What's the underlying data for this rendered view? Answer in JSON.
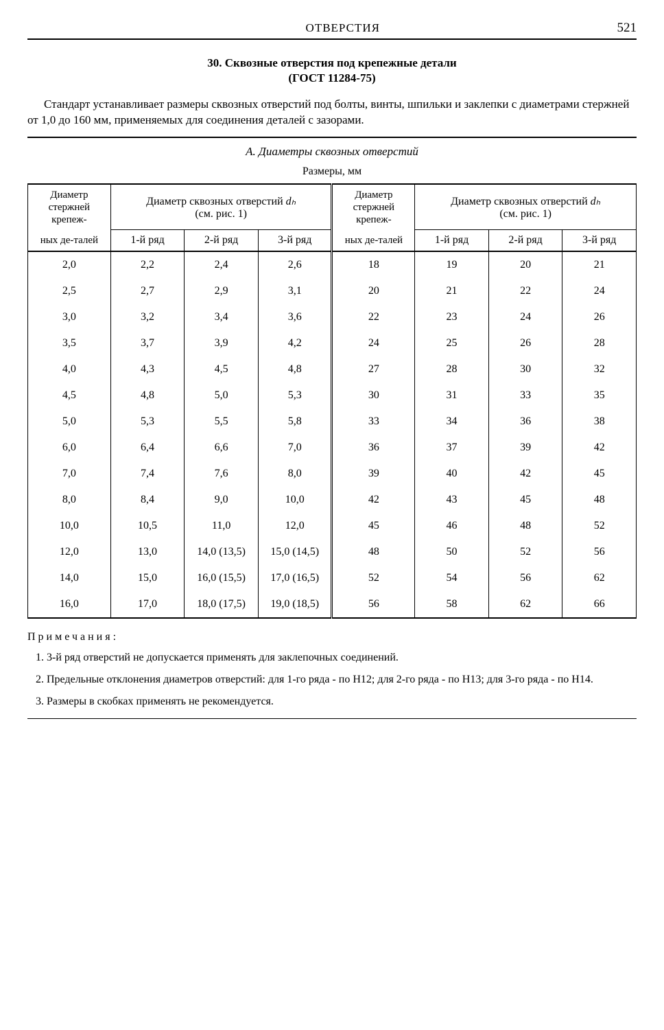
{
  "header": {
    "title": "ОТВЕРСТИЯ",
    "page": "521"
  },
  "section": {
    "number_title": "30. Сквозные отверстия под крепежные детали",
    "gost": "(ГОСТ 11284-75)",
    "intro": "Стандарт устанавливает размеры сквозных отверстий под болты, винты, шпильки и заклепки с диаметрами стержней от 1,0 до 160 мм, применяемых для соединения деталей с зазорами."
  },
  "subheading_a": "А. Диаметры сквозных отверстий",
  "caption": "Размеры, мм",
  "table": {
    "col_lead_a": "Диаметр стержней крепеж-",
    "col_lead_b": "ных де-талей",
    "col_group_a": "Диаметр сквозных отверстий ",
    "col_group_sym": "dₕ",
    "col_group_b": " (см. рис. 1)",
    "r1": "1-й ряд",
    "r2": "2-й ряд",
    "r3": "3-й ряд",
    "rows": [
      {
        "d1": "2,0",
        "a1": "2,2",
        "a2": "2,4",
        "a3": "2,6",
        "d2": "18",
        "b1": "19",
        "b2": "20",
        "b3": "21"
      },
      {
        "d1": "2,5",
        "a1": "2,7",
        "a2": "2,9",
        "a3": "3,1",
        "d2": "20",
        "b1": "21",
        "b2": "22",
        "b3": "24"
      },
      {
        "d1": "3,0",
        "a1": "3,2",
        "a2": "3,4",
        "a3": "3,6",
        "d2": "22",
        "b1": "23",
        "b2": "24",
        "b3": "26"
      },
      {
        "d1": "3,5",
        "a1": "3,7",
        "a2": "3,9",
        "a3": "4,2",
        "d2": "24",
        "b1": "25",
        "b2": "26",
        "b3": "28"
      },
      {
        "d1": "4,0",
        "a1": "4,3",
        "a2": "4,5",
        "a3": "4,8",
        "d2": "27",
        "b1": "28",
        "b2": "30",
        "b3": "32"
      },
      {
        "d1": "4,5",
        "a1": "4,8",
        "a2": "5,0",
        "a3": "5,3",
        "d2": "30",
        "b1": "31",
        "b2": "33",
        "b3": "35"
      },
      {
        "d1": "5,0",
        "a1": "5,3",
        "a2": "5,5",
        "a3": "5,8",
        "d2": "33",
        "b1": "34",
        "b2": "36",
        "b3": "38"
      },
      {
        "d1": "6,0",
        "a1": "6,4",
        "a2": "6,6",
        "a3": "7,0",
        "d2": "36",
        "b1": "37",
        "b2": "39",
        "b3": "42"
      },
      {
        "d1": "7,0",
        "a1": "7,4",
        "a2": "7,6",
        "a3": "8,0",
        "d2": "39",
        "b1": "40",
        "b2": "42",
        "b3": "45"
      },
      {
        "d1": "8,0",
        "a1": "8,4",
        "a2": "9,0",
        "a3": "10,0",
        "d2": "42",
        "b1": "43",
        "b2": "45",
        "b3": "48"
      },
      {
        "d1": "10,0",
        "a1": "10,5",
        "a2": "11,0",
        "a3": "12,0",
        "d2": "45",
        "b1": "46",
        "b2": "48",
        "b3": "52"
      },
      {
        "d1": "12,0",
        "a1": "13,0",
        "a2": "14,0 (13,5)",
        "a3": "15,0 (14,5)",
        "d2": "48",
        "b1": "50",
        "b2": "52",
        "b3": "56"
      },
      {
        "d1": "14,0",
        "a1": "15,0",
        "a2": "16,0 (15,5)",
        "a3": "17,0 (16,5)",
        "d2": "52",
        "b1": "54",
        "b2": "56",
        "b3": "62"
      },
      {
        "d1": "16,0",
        "a1": "17,0",
        "a2": "18,0 (17,5)",
        "a3": "19,0 (18,5)",
        "d2": "56",
        "b1": "58",
        "b2": "62",
        "b3": "66"
      }
    ]
  },
  "notes": {
    "title": "Примечания:",
    "items": [
      "3-й ряд отверстий не допускается применять для заклепочных соединений.",
      "Предельные отклонения диаметров отверстий: для 1-го ряда - по H12; для 2-го ряда - по H13; для 3-го ряда - по H14.",
      "Размеры в скобках применять не рекомендуется."
    ]
  }
}
